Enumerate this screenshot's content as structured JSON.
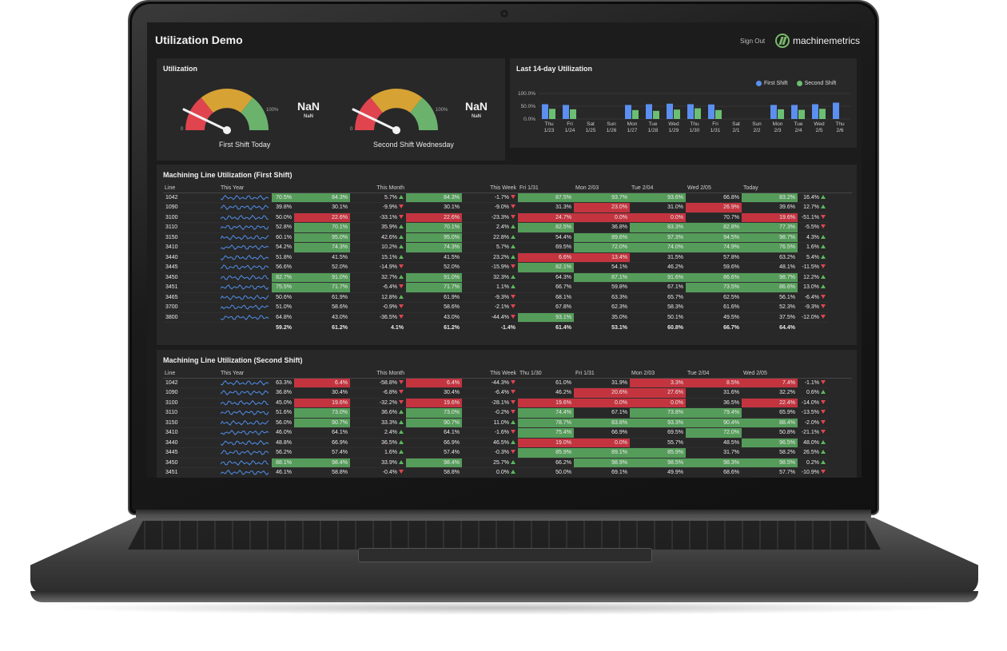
{
  "app": {
    "title": "Utilization Demo",
    "sign_out": "Sign Out",
    "brand": "machinemetrics"
  },
  "utilization": {
    "title": "Utilization",
    "gauges": [
      {
        "label": "First Shift Today",
        "value": "NaN",
        "sub": "NaN",
        "min_label": "0",
        "max_label": "100%"
      },
      {
        "label": "Second Shift Wednesday",
        "value": "NaN",
        "sub": "NaN",
        "min_label": "0",
        "max_label": "100%"
      }
    ],
    "colors": {
      "red": "#e0444f",
      "yellow": "#d7a234",
      "green": "#6bb36d"
    }
  },
  "chart": {
    "title": "Last 14-day Utilization",
    "chart_data": {
      "type": "bar",
      "categories": [
        [
          "Thu",
          "1/23"
        ],
        [
          "Fri",
          "1/24"
        ],
        [
          "Sat",
          "1/25"
        ],
        [
          "Sun",
          "1/26"
        ],
        [
          "Mon",
          "1/27"
        ],
        [
          "Tue",
          "1/28"
        ],
        [
          "Wed",
          "1/29"
        ],
        [
          "Thu",
          "1/30"
        ],
        [
          "Fri",
          "1/31"
        ],
        [
          "Sat",
          "2/1"
        ],
        [
          "Sun",
          "2/2"
        ],
        [
          "Mon",
          "2/3"
        ],
        [
          "Tue",
          "2/4"
        ],
        [
          "Wed",
          "2/5"
        ],
        [
          "Thu",
          "2/6"
        ]
      ],
      "series": [
        {
          "name": "First Shift",
          "color": "#5b8ff0",
          "values": [
            58,
            55,
            0,
            0,
            55,
            58,
            60,
            58,
            57,
            0,
            0,
            55,
            55,
            58,
            64
          ]
        },
        {
          "name": "Second Shift",
          "color": "#6bbf73",
          "values": [
            40,
            38,
            0,
            0,
            35,
            32,
            37,
            42,
            35,
            0,
            0,
            38,
            36,
            40,
            0
          ]
        }
      ],
      "y_ticks": [
        "100.0%",
        "50.0%",
        "0.0%"
      ],
      "ylim": [
        0,
        100
      ],
      "legend": "top-right",
      "grid": true
    }
  },
  "first_shift": {
    "title": "Machining Line Utilization (First Shift)",
    "headers": [
      "Line",
      "This Year",
      "This Month",
      "",
      "This Week",
      "",
      "Fri 1/31",
      "Mon 2/03",
      "Tue 2/04",
      "Wed 2/05",
      "Today",
      ""
    ],
    "rows": [
      {
        "line": "1042",
        "year": "70.5%",
        "year_c": "g",
        "month": "84.3%",
        "month_c": "g",
        "md": "5.7%",
        "md_dir": "up",
        "week": "84.3%",
        "week_c": "g",
        "wd": "-1.7%",
        "wd_dir": "down",
        "d1": "87.5%",
        "d1_c": "g",
        "d2": "93.7%",
        "d2_c": "g",
        "d3": "93.6%",
        "d3_c": "g",
        "d4": "66.8%",
        "d4_c": "",
        "d5": "83.2%",
        "d5_c": "g",
        "dd": "16.4%",
        "dd_dir": "up"
      },
      {
        "line": "1090",
        "year": "39.8%",
        "year_c": "",
        "month": "30.1%",
        "month_c": "",
        "md": "-9.9%",
        "md_dir": "down",
        "week": "30.1%",
        "week_c": "",
        "wd": "-9.0%",
        "wd_dir": "down",
        "d1": "31.3%",
        "d1_c": "",
        "d2": "23.0%",
        "d2_c": "r",
        "d3": "31.0%",
        "d3_c": "",
        "d4": "26.9%",
        "d4_c": "r",
        "d5": "39.6%",
        "d5_c": "",
        "dd": "12.7%",
        "dd_dir": "up"
      },
      {
        "line": "3100",
        "year": "50.0%",
        "year_c": "",
        "month": "22.6%",
        "month_c": "r",
        "md": "-33.1%",
        "md_dir": "down",
        "week": "22.6%",
        "week_c": "r",
        "wd": "-23.3%",
        "wd_dir": "down",
        "d1": "24.7%",
        "d1_c": "r",
        "d2": "0.0%",
        "d2_c": "r",
        "d3": "0.0%",
        "d3_c": "r",
        "d4": "70.7%",
        "d4_c": "",
        "d5": "19.6%",
        "d5_c": "r",
        "dd": "-51.1%",
        "dd_dir": "down"
      },
      {
        "line": "3110",
        "year": "52.8%",
        "year_c": "",
        "month": "70.1%",
        "month_c": "g",
        "md": "35.9%",
        "md_dir": "up",
        "week": "70.1%",
        "week_c": "g",
        "wd": "2.4%",
        "wd_dir": "up",
        "d1": "82.5%",
        "d1_c": "g",
        "d2": "36.8%",
        "d2_c": "",
        "d3": "83.3%",
        "d3_c": "g",
        "d4": "82.8%",
        "d4_c": "g",
        "d5": "77.3%",
        "d5_c": "g",
        "dd": "-5.5%",
        "dd_dir": "down"
      },
      {
        "line": "3150",
        "year": "60.1%",
        "year_c": "",
        "month": "95.0%",
        "month_c": "g",
        "md": "42.6%",
        "md_dir": "up",
        "week": "95.0%",
        "week_c": "g",
        "wd": "22.8%",
        "wd_dir": "up",
        "d1": "54.4%",
        "d1_c": "",
        "d2": "89.6%",
        "d2_c": "g",
        "d3": "97.3%",
        "d3_c": "g",
        "d4": "94.5%",
        "d4_c": "g",
        "d5": "98.7%",
        "d5_c": "g",
        "dd": "4.3%",
        "dd_dir": "up"
      },
      {
        "line": "3410",
        "year": "54.2%",
        "year_c": "",
        "month": "74.3%",
        "month_c": "g",
        "md": "10.2%",
        "md_dir": "up",
        "week": "74.3%",
        "week_c": "g",
        "wd": "5.7%",
        "wd_dir": "up",
        "d1": "69.5%",
        "d1_c": "",
        "d2": "72.0%",
        "d2_c": "g",
        "d3": "74.0%",
        "d3_c": "g",
        "d4": "74.9%",
        "d4_c": "g",
        "d5": "76.5%",
        "d5_c": "g",
        "dd": "1.6%",
        "dd_dir": "up"
      },
      {
        "line": "3440",
        "year": "51.8%",
        "year_c": "",
        "month": "41.5%",
        "month_c": "",
        "md": "15.1%",
        "md_dir": "up",
        "week": "41.5%",
        "week_c": "",
        "wd": "23.2%",
        "wd_dir": "up",
        "d1": "6.6%",
        "d1_c": "r",
        "d2": "13.4%",
        "d2_c": "r",
        "d3": "31.5%",
        "d3_c": "",
        "d4": "57.8%",
        "d4_c": "",
        "d5": "63.2%",
        "d5_c": "",
        "dd": "5.4%",
        "dd_dir": "up"
      },
      {
        "line": "3445",
        "year": "56.6%",
        "year_c": "",
        "month": "52.0%",
        "month_c": "",
        "md": "-14.9%",
        "md_dir": "down",
        "week": "52.0%",
        "week_c": "",
        "wd": "-15.9%",
        "wd_dir": "down",
        "d1": "82.1%",
        "d1_c": "g",
        "d2": "54.1%",
        "d2_c": "",
        "d3": "46.2%",
        "d3_c": "",
        "d4": "59.6%",
        "d4_c": "",
        "d5": "48.1%",
        "d5_c": "",
        "dd": "-11.5%",
        "dd_dir": "down"
      },
      {
        "line": "3450",
        "year": "82.7%",
        "year_c": "g",
        "month": "91.0%",
        "month_c": "g",
        "md": "32.7%",
        "md_dir": "up",
        "week": "91.0%",
        "week_c": "g",
        "wd": "32.3%",
        "wd_dir": "up",
        "d1": "64.3%",
        "d1_c": "",
        "d2": "87.1%",
        "d2_c": "g",
        "d3": "91.6%",
        "d3_c": "g",
        "d4": "86.6%",
        "d4_c": "g",
        "d5": "98.7%",
        "d5_c": "g",
        "dd": "12.2%",
        "dd_dir": "up"
      },
      {
        "line": "3451",
        "year": "75.5%",
        "year_c": "g",
        "month": "71.7%",
        "month_c": "g",
        "md": "-6.4%",
        "md_dir": "down",
        "week": "71.7%",
        "week_c": "g",
        "wd": "1.1%",
        "wd_dir": "up",
        "d1": "66.7%",
        "d1_c": "",
        "d2": "59.8%",
        "d2_c": "",
        "d3": "67.1%",
        "d3_c": "",
        "d4": "73.5%",
        "d4_c": "g",
        "d5": "86.6%",
        "d5_c": "g",
        "dd": "13.0%",
        "dd_dir": "up"
      },
      {
        "line": "3465",
        "year": "50.6%",
        "year_c": "",
        "month": "61.9%",
        "month_c": "",
        "md": "12.8%",
        "md_dir": "up",
        "week": "61.9%",
        "week_c": "",
        "wd": "-9.3%",
        "wd_dir": "down",
        "d1": "68.1%",
        "d1_c": "",
        "d2": "63.3%",
        "d2_c": "",
        "d3": "65.7%",
        "d3_c": "",
        "d4": "62.5%",
        "d4_c": "",
        "d5": "56.1%",
        "d5_c": "",
        "dd": "-6.4%",
        "dd_dir": "down"
      },
      {
        "line": "3700",
        "year": "51.0%",
        "year_c": "",
        "month": "58.6%",
        "month_c": "",
        "md": "-0.9%",
        "md_dir": "down",
        "week": "58.6%",
        "week_c": "",
        "wd": "-2.1%",
        "wd_dir": "down",
        "d1": "67.8%",
        "d1_c": "",
        "d2": "62.3%",
        "d2_c": "",
        "d3": "58.3%",
        "d3_c": "",
        "d4": "61.6%",
        "d4_c": "",
        "d5": "52.3%",
        "d5_c": "",
        "dd": "-9.3%",
        "dd_dir": "down"
      },
      {
        "line": "3800",
        "year": "64.8%",
        "year_c": "",
        "month": "43.0%",
        "month_c": "",
        "md": "-36.5%",
        "md_dir": "down",
        "week": "43.0%",
        "week_c": "",
        "wd": "-44.4%",
        "wd_dir": "down",
        "d1": "93.1%",
        "d1_c": "g",
        "d2": "35.0%",
        "d2_c": "",
        "d3": "50.1%",
        "d3_c": "",
        "d4": "49.5%",
        "d4_c": "",
        "d5": "37.5%",
        "d5_c": "",
        "dd": "-12.0%",
        "dd_dir": "down"
      }
    ],
    "totals": {
      "year": "59.2%",
      "month": "61.2%",
      "md": "4.1%",
      "week": "61.2%",
      "wd": "-1.4%",
      "d1": "61.4%",
      "d2": "53.1%",
      "d3": "60.8%",
      "d4": "66.7%",
      "d5": "64.4%"
    }
  },
  "second_shift": {
    "title": "Machining Line Utilization (Second Shift)",
    "headers": [
      "Line",
      "This Year",
      "This Month",
      "",
      "This Week",
      "",
      "Thu 1/30",
      "Fri 1/31",
      "Mon 2/03",
      "Tue 2/04",
      "Wed 2/05",
      ""
    ],
    "rows": [
      {
        "line": "1042",
        "year": "63.3%",
        "year_c": "",
        "month": "6.4%",
        "month_c": "r",
        "md": "-58.8%",
        "md_dir": "down",
        "week": "6.4%",
        "week_c": "r",
        "wd": "-44.3%",
        "wd_dir": "down",
        "d1": "61.0%",
        "d1_c": "",
        "d2": "31.9%",
        "d2_c": "",
        "d3": "3.3%",
        "d3_c": "r",
        "d4": "8.5%",
        "d4_c": "r",
        "d5": "7.4%",
        "d5_c": "r",
        "dd": "-1.1%",
        "dd_dir": "down"
      },
      {
        "line": "1090",
        "year": "36.8%",
        "year_c": "",
        "month": "30.4%",
        "month_c": "",
        "md": "-6.8%",
        "md_dir": "down",
        "week": "30.4%",
        "week_c": "",
        "wd": "-6.4%",
        "wd_dir": "down",
        "d1": "46.2%",
        "d1_c": "",
        "d2": "20.6%",
        "d2_c": "r",
        "d3": "27.6%",
        "d3_c": "r",
        "d4": "31.6%",
        "d4_c": "",
        "d5": "32.2%",
        "d5_c": "",
        "dd": "0.6%",
        "dd_dir": "up"
      },
      {
        "line": "3100",
        "year": "45.0%",
        "year_c": "",
        "month": "19.6%",
        "month_c": "r",
        "md": "-32.2%",
        "md_dir": "down",
        "week": "19.6%",
        "week_c": "r",
        "wd": "-28.1%",
        "wd_dir": "down",
        "d1": "19.6%",
        "d1_c": "r",
        "d2": "0.0%",
        "d2_c": "r",
        "d3": "0.0%",
        "d3_c": "r",
        "d4": "36.5%",
        "d4_c": "",
        "d5": "22.4%",
        "d5_c": "r",
        "dd": "-14.0%",
        "dd_dir": "down"
      },
      {
        "line": "3110",
        "year": "51.6%",
        "year_c": "",
        "month": "73.0%",
        "month_c": "g",
        "md": "36.6%",
        "md_dir": "up",
        "week": "73.0%",
        "week_c": "g",
        "wd": "-0.2%",
        "wd_dir": "down",
        "d1": "74.4%",
        "d1_c": "g",
        "d2": "67.1%",
        "d2_c": "",
        "d3": "73.8%",
        "d3_c": "g",
        "d4": "79.4%",
        "d4_c": "g",
        "d5": "65.9%",
        "d5_c": "",
        "dd": "-13.5%",
        "dd_dir": "down"
      },
      {
        "line": "3150",
        "year": "56.0%",
        "year_c": "",
        "month": "90.7%",
        "month_c": "g",
        "md": "33.3%",
        "md_dir": "up",
        "week": "90.7%",
        "week_c": "g",
        "wd": "11.0%",
        "wd_dir": "up",
        "d1": "78.7%",
        "d1_c": "g",
        "d2": "83.8%",
        "d2_c": "g",
        "d3": "93.3%",
        "d3_c": "g",
        "d4": "90.4%",
        "d4_c": "g",
        "d5": "88.4%",
        "d5_c": "g",
        "dd": "-2.0%",
        "dd_dir": "down"
      },
      {
        "line": "3410",
        "year": "46.0%",
        "year_c": "",
        "month": "64.1%",
        "month_c": "",
        "md": "2.4%",
        "md_dir": "up",
        "week": "64.1%",
        "week_c": "",
        "wd": "-1.6%",
        "wd_dir": "down",
        "d1": "75.4%",
        "d1_c": "g",
        "d2": "66.9%",
        "d2_c": "",
        "d3": "69.5%",
        "d3_c": "",
        "d4": "72.0%",
        "d4_c": "g",
        "d5": "50.8%",
        "d5_c": "",
        "dd": "-21.1%",
        "dd_dir": "down"
      },
      {
        "line": "3440",
        "year": "48.8%",
        "year_c": "",
        "month": "66.9%",
        "month_c": "",
        "md": "36.5%",
        "md_dir": "up",
        "week": "66.9%",
        "week_c": "",
        "wd": "46.5%",
        "wd_dir": "up",
        "d1": "19.0%",
        "d1_c": "r",
        "d2": "0.0%",
        "d2_c": "r",
        "d3": "55.7%",
        "d3_c": "",
        "d4": "48.5%",
        "d4_c": "",
        "d5": "96.5%",
        "d5_c": "g",
        "dd": "48.0%",
        "dd_dir": "up"
      },
      {
        "line": "3445",
        "year": "56.2%",
        "year_c": "",
        "month": "57.4%",
        "month_c": "",
        "md": "1.6%",
        "md_dir": "up",
        "week": "57.4%",
        "week_c": "",
        "wd": "-0.3%",
        "wd_dir": "down",
        "d1": "85.9%",
        "d1_c": "g",
        "d2": "89.1%",
        "d2_c": "g",
        "d3": "85.9%",
        "d3_c": "g",
        "d4": "31.7%",
        "d4_c": "",
        "d5": "58.2%",
        "d5_c": "",
        "dd": "26.5%",
        "dd_dir": "up"
      },
      {
        "line": "3450",
        "year": "88.1%",
        "year_c": "g",
        "month": "98.4%",
        "month_c": "g",
        "md": "33.9%",
        "md_dir": "up",
        "week": "98.4%",
        "week_c": "g",
        "wd": "25.7%",
        "wd_dir": "up",
        "d1": "66.2%",
        "d1_c": "",
        "d2": "98.9%",
        "d2_c": "g",
        "d3": "98.5%",
        "d3_c": "g",
        "d4": "98.3%",
        "d4_c": "g",
        "d5": "98.5%",
        "d5_c": "g",
        "dd": "0.2%",
        "dd_dir": "up"
      },
      {
        "line": "3451",
        "year": "46.1%",
        "year_c": "",
        "month": "58.8%",
        "month_c": "",
        "md": "-0.4%",
        "md_dir": "down",
        "week": "58.8%",
        "week_c": "",
        "wd": "0.0%",
        "wd_dir": "up",
        "d1": "50.0%",
        "d1_c": "",
        "d2": "69.1%",
        "d2_c": "",
        "d3": "49.9%",
        "d3_c": "",
        "d4": "68.6%",
        "d4_c": "",
        "d5": "57.7%",
        "d5_c": "",
        "dd": "-10.9%",
        "dd_dir": "down"
      }
    ]
  }
}
